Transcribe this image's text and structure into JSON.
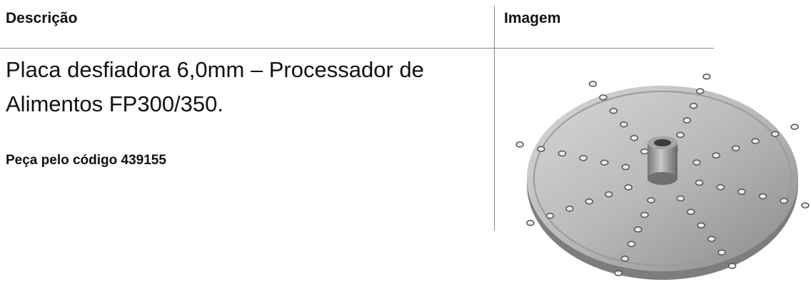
{
  "table": {
    "header": [
      "Descrição",
      "Imagem"
    ],
    "rows": [
      {
        "description": "Placa desfiadora 6,0mm – Processador de Alimentos FP300/350.",
        "note": "Peça pelo código 439155"
      }
    ]
  }
}
